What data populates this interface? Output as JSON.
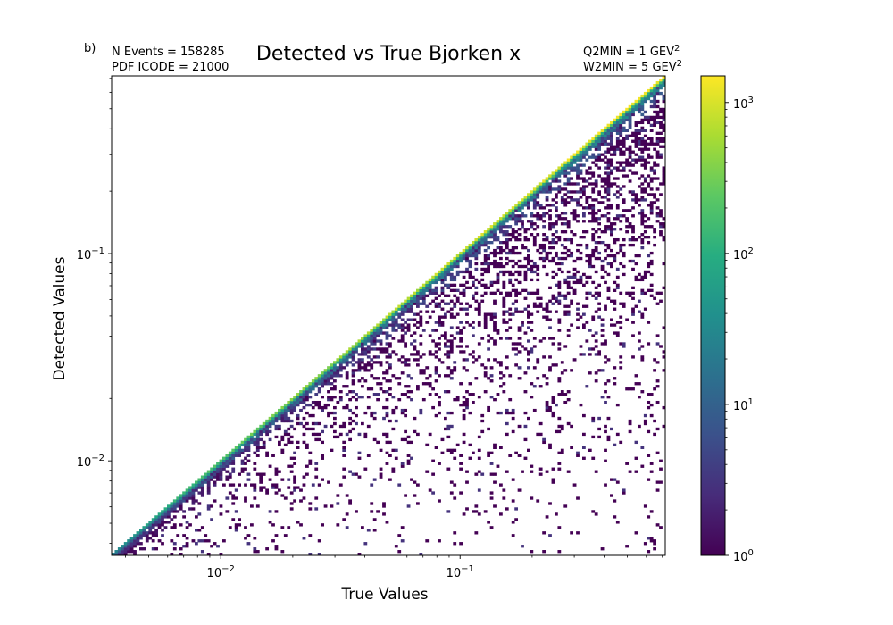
{
  "panel_label": "b)",
  "info": {
    "n_events": "N Events =  158285",
    "pdf_icode": "PDF ICODE = 21000",
    "q2min": "Q2MIN = 1 GEV",
    "w2min": "W2MIN = 5 GEV",
    "unit_exponent": "2"
  },
  "chart_data": {
    "type": "heatmap",
    "title": "Detected vs True Bjorken x",
    "xlabel": "True Values",
    "ylabel": "Detected Values",
    "xscale": "log",
    "yscale": "log",
    "xlim": [
      0.0035,
      0.72
    ],
    "ylim": [
      0.0035,
      0.72
    ],
    "x_ticks": [
      {
        "base": "10",
        "exp": "−2",
        "value": 0.01
      },
      {
        "base": "10",
        "exp": "−1",
        "value": 0.1
      }
    ],
    "y_ticks": [
      {
        "base": "10",
        "exp": "−2",
        "value": 0.01
      },
      {
        "base": "10",
        "exp": "−1",
        "value": 0.1
      }
    ],
    "bins_per_axis": 180,
    "distribution": "counts concentrated on the diagonal (detected = true), sparse scatter below the diagonal (detected < true), empty above the diagonal",
    "colorbar": {
      "scale": "log",
      "colormap": "viridis",
      "range": [
        1,
        1500
      ],
      "ticks": [
        {
          "base": "10",
          "exp": "0",
          "value": 1
        },
        {
          "base": "10",
          "exp": "1",
          "value": 10
        },
        {
          "base": "10",
          "exp": "2",
          "value": 100
        },
        {
          "base": "10",
          "exp": "3",
          "value": 1000
        }
      ]
    },
    "grid": false,
    "legend": "none"
  }
}
